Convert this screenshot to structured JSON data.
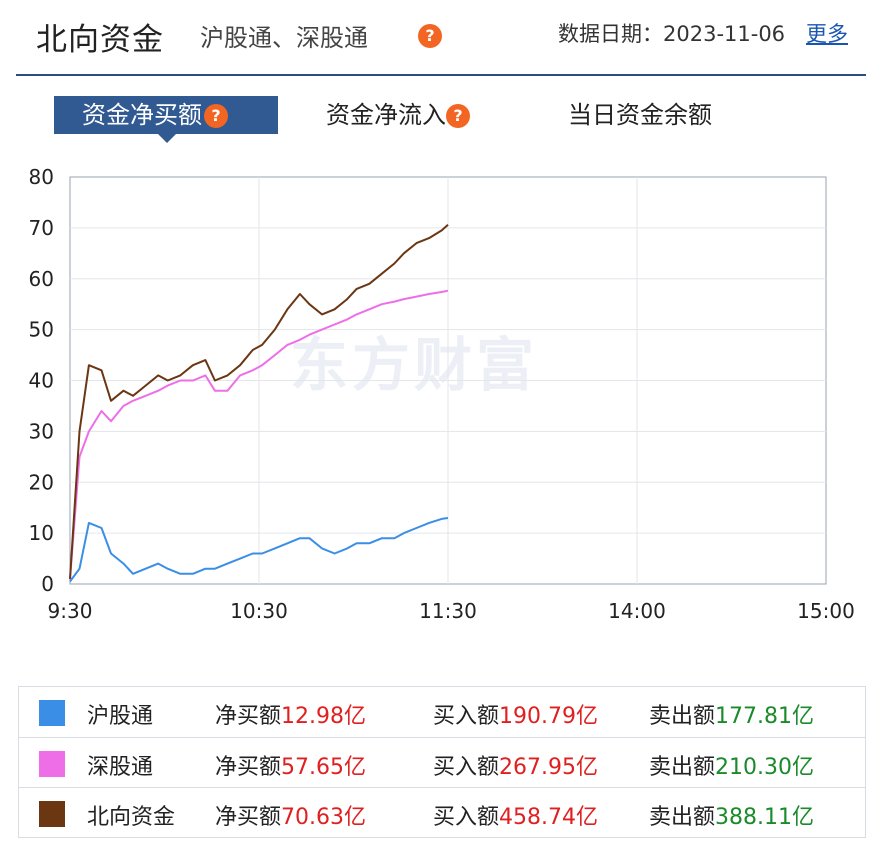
{
  "header": {
    "title": "北向资金",
    "subtitle": "沪股通、深股通",
    "help_glyph": "?",
    "date_label": "数据日期：2023-11-06",
    "more_link": "更多"
  },
  "tabs": [
    {
      "label": "资金净买额",
      "active": true
    },
    {
      "label": "资金净流入",
      "active": false
    },
    {
      "label": "当日资金余额",
      "active": false
    }
  ],
  "watermark": "东方财富",
  "colors": {
    "accent": "#315a93",
    "hgt": "#3a8ee6",
    "sgt": "#ee6ee8",
    "north": "#6b3612",
    "positive": "#e02020",
    "negative": "#1a8a2a"
  },
  "chart_data": {
    "type": "line",
    "xlabel": "",
    "ylabel": "",
    "x_ticks": [
      "9:30",
      "10:30",
      "11:30",
      "14:00",
      "15:00"
    ],
    "ylim": [
      0,
      80
    ],
    "y_ticks": [
      0,
      10,
      20,
      30,
      40,
      50,
      60,
      70,
      80
    ],
    "grid": true,
    "x": [
      "9:30",
      "9:33",
      "9:36",
      "9:40",
      "9:43",
      "9:47",
      "9:50",
      "9:54",
      "9:58",
      "10:01",
      "10:05",
      "10:09",
      "10:13",
      "10:16",
      "10:20",
      "10:24",
      "10:28",
      "10:31",
      "10:35",
      "10:39",
      "10:43",
      "10:46",
      "10:50",
      "10:54",
      "10:58",
      "11:01",
      "11:05",
      "11:09",
      "11:13",
      "11:16",
      "11:20",
      "11:24",
      "11:28",
      "11:30"
    ],
    "series": [
      {
        "name": "沪股通",
        "color": "#3a8ee6",
        "values": [
          0.5,
          3,
          12,
          11,
          6,
          4,
          2,
          3,
          4,
          3,
          2,
          2,
          3,
          3,
          4,
          5,
          6,
          6,
          7,
          8,
          9,
          9,
          7,
          6,
          7,
          8,
          8,
          9,
          9,
          10,
          11,
          12,
          12.8,
          12.98
        ]
      },
      {
        "name": "深股通",
        "color": "#ee6ee8",
        "values": [
          1,
          25,
          30,
          34,
          32,
          35,
          36,
          37,
          38,
          39,
          40,
          40,
          41,
          38,
          38,
          41,
          42,
          43,
          45,
          47,
          48,
          49,
          50,
          51,
          52,
          53,
          54,
          55,
          55.5,
          56,
          56.5,
          57,
          57.4,
          57.65
        ]
      },
      {
        "name": "北向资金",
        "color": "#6b3612",
        "values": [
          1,
          30,
          43,
          42,
          36,
          38,
          37,
          39,
          41,
          40,
          41,
          43,
          44,
          40,
          41,
          43,
          46,
          47,
          50,
          54,
          57,
          55,
          53,
          54,
          56,
          58,
          59,
          61,
          63,
          65,
          67,
          68,
          69.5,
          70.63
        ]
      }
    ],
    "legend_rows": [
      {
        "name": "沪股通",
        "color": "#3a8ee6",
        "net_label": "净买额",
        "net": "12.98亿",
        "buy_label": "买入额",
        "buy": "190.79亿",
        "sell_label": "卖出额",
        "sell": "177.81亿"
      },
      {
        "name": "深股通",
        "color": "#ee6ee8",
        "net_label": "净买额",
        "net": "57.65亿",
        "buy_label": "买入额",
        "buy": "267.95亿",
        "sell_label": "卖出额",
        "sell": "210.30亿"
      },
      {
        "name": "北向资金",
        "color": "#6b3612",
        "net_label": "净买额",
        "net": "70.63亿",
        "buy_label": "买入额",
        "buy": "458.74亿",
        "sell_label": "卖出额",
        "sell": "388.11亿"
      }
    ]
  }
}
